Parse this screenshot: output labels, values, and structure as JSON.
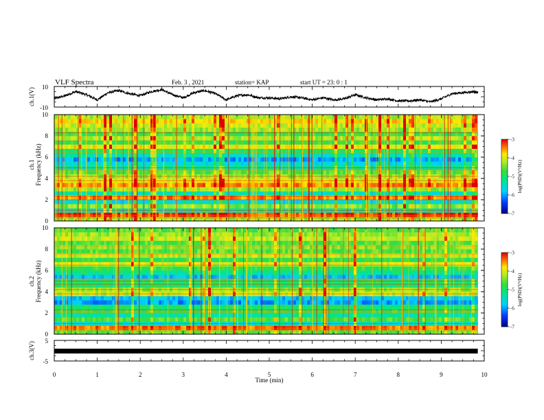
{
  "header": {
    "title": "VLF Spectra",
    "date": "Feb. 3  , 2021",
    "station": "station= KAP",
    "start": "start  UT  =   23: 0  : 1"
  },
  "chart_data": [
    {
      "type": "line",
      "panel": "ch1-waveform",
      "ylabel": "ch.1(V)",
      "ylim": [
        -10,
        10
      ],
      "yticks": [
        "10",
        "-10"
      ],
      "xlim": [
        0,
        10
      ],
      "x": [
        0,
        0.25,
        0.5,
        0.75,
        1,
        1.25,
        1.5,
        1.75,
        2,
        2.25,
        2.5,
        2.75,
        3,
        3.25,
        3.5,
        3.75,
        4,
        4.25,
        4.5,
        4.75,
        5,
        5.25,
        5.5,
        5.75,
        6,
        6.25,
        6.5,
        6.75,
        7,
        7.25,
        7.5,
        7.75,
        8,
        8.25,
        8.5,
        8.75,
        9,
        9.25,
        9.5,
        9.75,
        9.85
      ],
      "y": [
        -2,
        1,
        5,
        2,
        -3,
        4,
        6,
        3,
        1,
        5,
        7,
        2,
        -1,
        4,
        6,
        3,
        -3,
        1,
        2,
        -1,
        -1,
        -2,
        0,
        -1,
        -3,
        -1,
        -3,
        -2,
        2,
        -1,
        -3,
        -2,
        -4,
        -4,
        -3,
        -5,
        -2,
        3,
        4,
        5,
        4
      ],
      "line_color": "#000000"
    },
    {
      "type": "heatmap",
      "panel": "ch1-spectrogram",
      "ylabel": "ch.1\nFrequency  (kHz)",
      "ylim": [
        0,
        10
      ],
      "yticks": [
        "0",
        "2",
        "4",
        "6",
        "8",
        "10"
      ],
      "xlim": [
        0,
        9.85
      ],
      "band_levels": [
        -4.3,
        -3.3,
        -5.4,
        -4.4,
        -5.6,
        -3.5,
        -5.4,
        -4.3,
        -3.5,
        -3.9,
        -4.3,
        -4.6,
        -5.3,
        -5.6,
        -6.0,
        -5.4,
        -4.9,
        -3.9,
        -4.8,
        -4.2,
        -4.8,
        -4.3,
        -4.1,
        -3.8,
        -4.2
      ],
      "colorbar": {
        "label": "log(PSD)(V²/Hz)",
        "ticks": [
          "-3",
          "-4",
          "-5",
          "-6",
          "-7"
        ],
        "range": [
          -7,
          -3
        ]
      }
    },
    {
      "type": "heatmap",
      "panel": "ch2-spectrogram",
      "ylabel": "ch.2\nFrequency  (kHz)",
      "ylim": [
        0,
        10
      ],
      "yticks": [
        "0",
        "2",
        "4",
        "6",
        "8",
        "10"
      ],
      "xlim": [
        0,
        9.85
      ],
      "band_levels": [
        -4.5,
        -3.4,
        -5.5,
        -4.6,
        -5.3,
        -4.8,
        -5.0,
        -6.0,
        -5.8,
        -4.1,
        -4.3,
        -5.0,
        -4.9,
        -5.8,
        -5.2,
        -4.8,
        -4.0,
        -4.8,
        -4.2,
        -4.6,
        -4.4,
        -4.6,
        -4.1,
        -4.3,
        -4.6
      ],
      "colorbar": {
        "label": "log(PSD)(V²/Hz)",
        "ticks": [
          "-3",
          "-4",
          "-5",
          "-6",
          "-7"
        ],
        "range": [
          -7,
          -3
        ]
      }
    },
    {
      "type": "line",
      "panel": "ch3-waveform",
      "ylabel": "ch.3(V)",
      "ylim": [
        -5,
        5
      ],
      "yticks": [
        "5",
        "-5"
      ],
      "xlim": [
        0,
        10
      ],
      "x": [
        0,
        9.85
      ],
      "y": [
        -0.2,
        -0.2
      ],
      "line_color": "#000000"
    }
  ],
  "xaxis": {
    "label": "Time  (min)",
    "ticks": [
      "0",
      "1",
      "2",
      "3",
      "4",
      "5",
      "6",
      "7",
      "8",
      "9",
      "10"
    ],
    "range": [
      0,
      10
    ]
  }
}
